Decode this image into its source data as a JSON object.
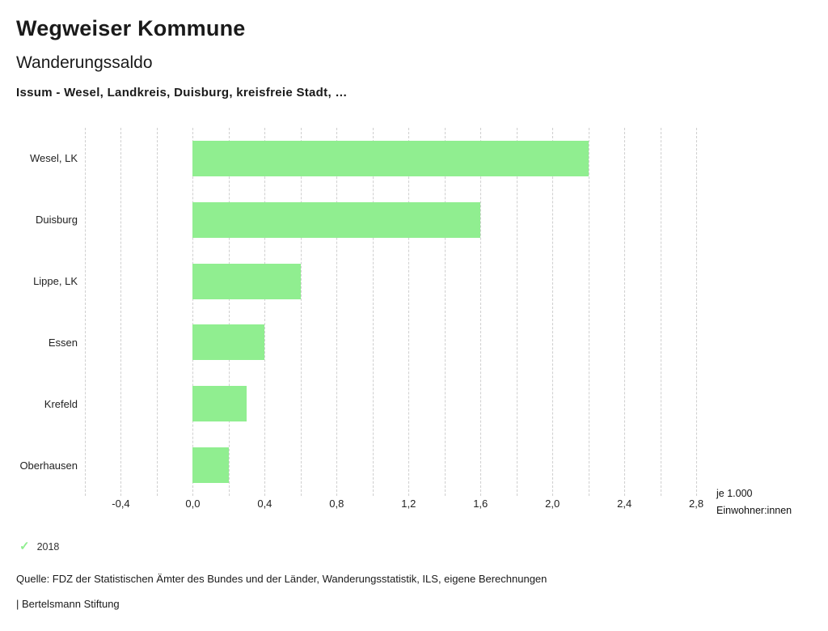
{
  "header": {
    "app_title": "Wegweiser Kommune"
  },
  "chart_data": {
    "type": "bar",
    "orientation": "horizontal",
    "title": "Wanderungssaldo",
    "subtitle": "Issum - Wesel, Landkreis, Duisburg, kreisfreie Stadt, …",
    "categories": [
      "Wesel, LK",
      "Duisburg",
      "Lippe, LK",
      "Essen",
      "Krefeld",
      "Oberhausen"
    ],
    "series": [
      {
        "name": "2018",
        "values": [
          2.2,
          1.6,
          0.6,
          0.4,
          0.3,
          0.2
        ],
        "color": "#90ee90"
      }
    ],
    "xlabel": "je 1.000 Einwohner:innen",
    "xlabel_lines": [
      "je 1.000",
      "Einwohner:innen"
    ],
    "ylabel": "",
    "xlim": [
      -0.6,
      2.84
    ],
    "x_ticks": [
      {
        "value": -0.4,
        "label": "-0,4"
      },
      {
        "value": 0.0,
        "label": "0,0"
      },
      {
        "value": 0.4,
        "label": "0,4"
      },
      {
        "value": 0.8,
        "label": "0,8"
      },
      {
        "value": 1.2,
        "label": "1,2"
      },
      {
        "value": 1.6,
        "label": "1,6"
      },
      {
        "value": 2.0,
        "label": "2,0"
      },
      {
        "value": 2.4,
        "label": "2,4"
      },
      {
        "value": 2.8,
        "label": "2,8"
      }
    ],
    "grid": {
      "style": "dashed-vertical",
      "start": -0.6,
      "end": 2.8,
      "step": 0.2,
      "color": "#cfcfcf"
    },
    "legend_position": "bottom-left"
  },
  "legend": {
    "items": [
      {
        "label": "2018",
        "icon": "check-icon",
        "glyph": "✓",
        "checked": true
      }
    ]
  },
  "footer": {
    "source": "Quelle: FDZ der Statistischen Ämter des Bundes und der Länder, Wanderungsstatistik, ILS, eigene Berechnungen",
    "branding": "| Bertelsmann Stiftung"
  }
}
